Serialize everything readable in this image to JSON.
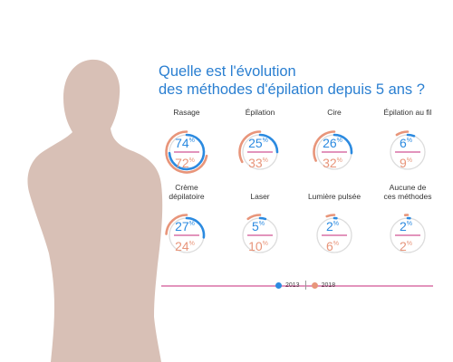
{
  "title_line1": "Quelle est l'évolution",
  "title_line2": "des méthodes d'épilation depuis 5 ans ?",
  "colors": {
    "y2013": "#2b8ae0",
    "y2018": "#e8957a",
    "divider": "#c4287a",
    "ring": "#dcdcdc",
    "silhouette": "#d8c0b6"
  },
  "legend": {
    "y2013": "2013",
    "y2018": "2018"
  },
  "chart_data": {
    "type": "donut",
    "unit": "%",
    "series": [
      {
        "name": "2013",
        "values": [
          74,
          25,
          26,
          6,
          27,
          5,
          2,
          2
        ]
      },
      {
        "name": "2018",
        "values": [
          72,
          33,
          32,
          9,
          24,
          10,
          6,
          2
        ]
      }
    ],
    "categories": [
      {
        "label": [
          "Rasage"
        ],
        "v2013": 74,
        "v2018": 72
      },
      {
        "label": [
          "Épilation"
        ],
        "v2013": 25,
        "v2018": 33
      },
      {
        "label": [
          "Cire"
        ],
        "v2013": 26,
        "v2018": 32
      },
      {
        "label": [
          "Épilation au fil"
        ],
        "v2013": 6,
        "v2018": 9
      },
      {
        "label": [
          "Crème",
          "dépilatoire"
        ],
        "v2013": 27,
        "v2018": 24
      },
      {
        "label": [
          "Laser"
        ],
        "v2013": 5,
        "v2018": 10
      },
      {
        "label": [
          "Lumière pulsée"
        ],
        "v2013": 2,
        "v2018": 6
      },
      {
        "label": [
          "Aucune de",
          "ces méthodes"
        ],
        "v2013": 2,
        "v2018": 2
      }
    ]
  }
}
